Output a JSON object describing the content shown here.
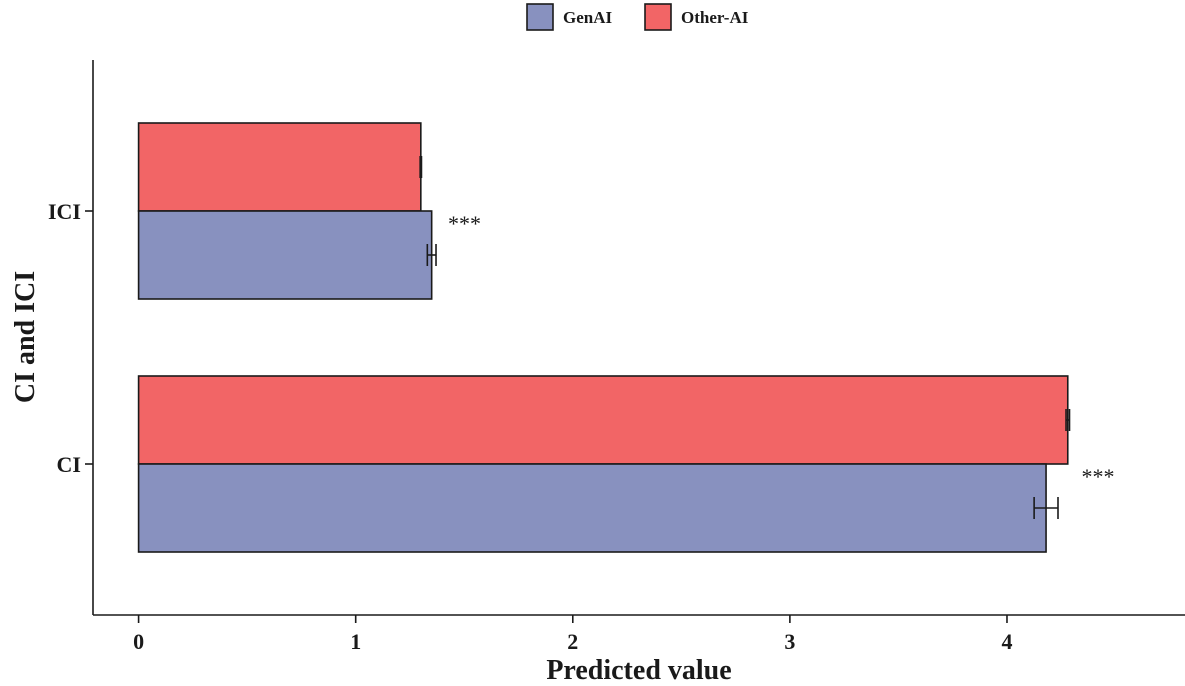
{
  "chart_data": {
    "type": "bar",
    "orientation": "horizontal",
    "categories": [
      "ICI",
      "CI"
    ],
    "series": [
      {
        "name": "Other-AI",
        "values": [
          1.3,
          4.28
        ],
        "errors": [
          0.003,
          0.008
        ],
        "color": "#f26566"
      },
      {
        "name": "GenAI",
        "values": [
          1.35,
          4.18
        ],
        "errors": [
          0.02,
          0.055
        ],
        "color": "#8891bf"
      }
    ],
    "annotations": [
      {
        "category": "ICI",
        "text": "***"
      },
      {
        "category": "CI",
        "text": "***"
      }
    ],
    "xlabel": "Predicted value",
    "ylabel": "CI and ICI",
    "xlim": [
      -0.21,
      4.82
    ],
    "xticks": [
      0,
      1,
      2,
      3,
      4
    ],
    "xtick_labels": [
      "0",
      "1",
      "2",
      "3",
      "4"
    ],
    "grid": false,
    "legend": {
      "position": "top-center",
      "entries": [
        "GenAI",
        "Other-AI"
      ]
    }
  }
}
